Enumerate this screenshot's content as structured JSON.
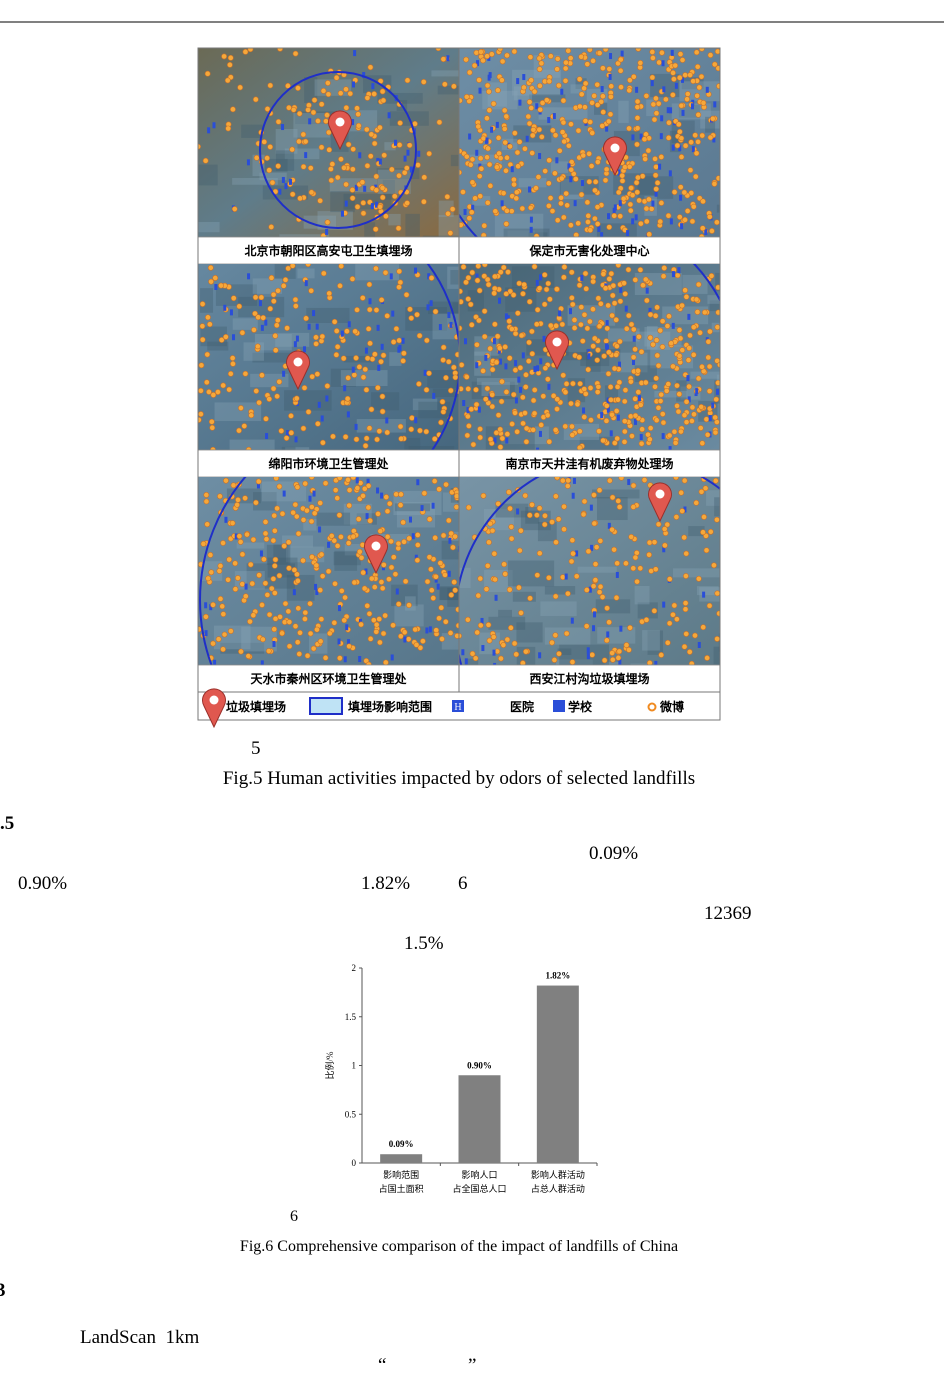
{
  "figure5": {
    "panels": [
      "北京市朝阳区高安屯卫生填埋场",
      "保定市无害化处理中心",
      "绵阳市环境卫生管理处",
      "南京市天井洼有机废弃物处理场",
      "天水市秦州区环境卫生管理处",
      "西安江村沟垃圾填埋场"
    ],
    "legend": [
      "垃圾填埋场",
      "填埋场影响范围",
      "医院",
      "学校",
      "微博"
    ],
    "caption_number": "5",
    "caption": "Fig.5 Human activities impacted by odors of selected landfills"
  },
  "section_heading": ".5",
  "text_fragments": [
    "0.09%",
    "0.90%",
    "1.82%",
    "6",
    "12369",
    "1.5%"
  ],
  "chart_data": {
    "type": "bar",
    "ylabel": "比例/%",
    "categories": [
      [
        "影响范围",
        "占国土面积"
      ],
      [
        "影响人口",
        "占全国总人口"
      ],
      [
        "影响人群活动",
        "占总人群活动"
      ]
    ],
    "values": [
      0.09,
      0.9,
      1.82
    ],
    "value_labels": [
      "0.09%",
      "0.90%",
      "1.82%"
    ],
    "ylim": [
      0,
      2
    ],
    "yticks": [
      0,
      0.5,
      1,
      1.5,
      2
    ],
    "color": "#808080"
  },
  "figure6": {
    "caption_number": "6",
    "caption": "Fig.6 Comprehensive comparison of the impact of landfills of China"
  },
  "section_3": "3",
  "body": [
    "LandScan  1km",
    "“",
    "”"
  ]
}
